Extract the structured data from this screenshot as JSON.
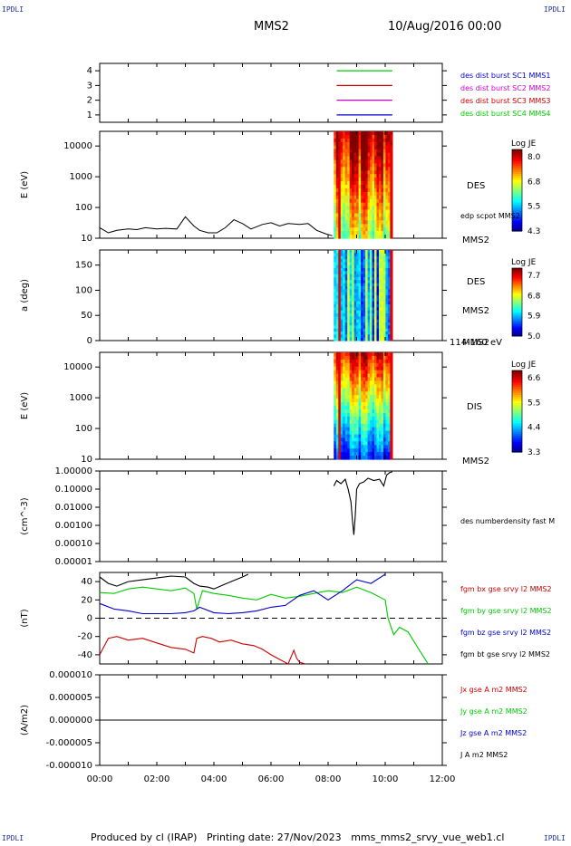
{
  "header": {
    "corner_label": "IPDLI",
    "spacecraft": "MMS2",
    "date": "10/Aug/2016 00:00"
  },
  "footer": {
    "credit": "Produced by cl (IRAP)",
    "printing": "Printing date: 27/Nov/2023",
    "product": "mms_mms2_srvy_vue_web1.cl"
  },
  "chart_data": [
    {
      "id": "coverage",
      "type": "line",
      "ylim": [
        0.5,
        4.5
      ],
      "ticks": [
        "4",
        "3",
        "2",
        "1"
      ],
      "ylabel": "",
      "series": [
        {
          "name": "des dist burst SC1 MMS1",
          "color": "#0000cc",
          "level": 1,
          "x": [
            8.3,
            10.25
          ]
        },
        {
          "name": "des dist burst SC2 MMS2",
          "color": "#cc00cc",
          "level": 2,
          "x": [
            8.3,
            10.25
          ]
        },
        {
          "name": "des dist burst SC3 MMS3",
          "color": "#cc0000",
          "level": 3,
          "x": [
            8.3,
            10.25
          ]
        },
        {
          "name": "des dist burst SC4 MMS4",
          "color": "#00cc00",
          "level": 4,
          "x": [
            8.3,
            10.25
          ]
        }
      ]
    },
    {
      "id": "des-energy",
      "type": "heatmap",
      "ylabel": "E (eV)",
      "yscale": "log",
      "ylim": [
        10,
        30000
      ],
      "ticks": [
        "10000",
        "1000",
        "100",
        "10"
      ],
      "label": "DES",
      "sublabel": "MMS2",
      "overlay_label": "edp scpot MMS2",
      "colorbar": {
        "title": "Log JE",
        "ticks": [
          "8.0",
          "6.8",
          "5.5",
          "4.3"
        ]
      },
      "data_range_hours": [
        8.2,
        10.25
      ],
      "overlay_line": {
        "x": [
          0,
          0.3,
          0.6,
          1.0,
          1.3,
          1.6,
          2.0,
          2.3,
          2.7,
          3.0,
          3.3,
          3.5,
          3.8,
          4.1,
          4.4,
          4.7,
          5.0,
          5.3,
          5.7,
          6.0,
          6.3,
          6.6,
          7.0,
          7.3,
          7.6,
          7.9,
          8.15
        ],
        "y": [
          22,
          15,
          18,
          20,
          19,
          22,
          20,
          21,
          20,
          50,
          25,
          18,
          15,
          15,
          22,
          40,
          30,
          20,
          28,
          32,
          25,
          30,
          28,
          30,
          18,
          14,
          12
        ]
      }
    },
    {
      "id": "des-pitch",
      "type": "heatmap",
      "ylabel": "a (deg)",
      "ylim": [
        0,
        180
      ],
      "ticks": [
        "150",
        "100",
        "50",
        "0"
      ],
      "label": "DES",
      "sublabel": "MMS2",
      "range_label": "114-160 eV",
      "colorbar": {
        "title": "Log JE",
        "ticks": [
          "7.7",
          "6.8",
          "5.9",
          "5.0"
        ]
      },
      "data_range_hours": [
        8.2,
        10.25
      ]
    },
    {
      "id": "dis-energy",
      "type": "heatmap",
      "ylabel": "E (eV)",
      "yscale": "log",
      "ylim": [
        10,
        30000
      ],
      "ticks": [
        "10000",
        "1000",
        "100",
        "10"
      ],
      "label": "DIS",
      "sublabel": "MMS2",
      "colorbar": {
        "title": "Log JE",
        "ticks": [
          "6.6",
          "5.5",
          "4.4",
          "3.3"
        ]
      },
      "data_range_hours": [
        8.2,
        10.25
      ]
    },
    {
      "id": "density",
      "type": "line",
      "ylabel": "(cm^-3)",
      "yscale": "log",
      "ylim": [
        1e-05,
        1.0
      ],
      "ticks": [
        "1.00000",
        "0.10000",
        "0.01000",
        "0.00100",
        "0.00010",
        "0.00001"
      ],
      "series": [
        {
          "name": "des numberdensity fast M",
          "color": "#000000",
          "x": [
            8.2,
            8.3,
            8.45,
            8.6,
            8.7,
            8.8,
            8.85,
            8.9,
            8.95,
            9.0,
            9.1,
            9.25,
            9.4,
            9.6,
            9.8,
            9.95,
            10.05,
            10.15,
            10.25
          ],
          "y": [
            0.15,
            0.3,
            0.2,
            0.35,
            0.1,
            0.02,
            0.002,
            0.0003,
            0.003,
            0.1,
            0.2,
            0.25,
            0.4,
            0.3,
            0.35,
            0.15,
            0.6,
            0.8,
            0.9
          ]
        }
      ]
    },
    {
      "id": "fgm",
      "type": "line",
      "ylabel": "(nT)",
      "ylim": [
        -50,
        50
      ],
      "ticks": [
        "40",
        "20",
        "0",
        "-20",
        "-40"
      ],
      "zero_line": true,
      "series": [
        {
          "name": "fgm bx gse srvy l2 MMS2",
          "color": "#cc0000",
          "x": [
            0.0,
            0.3,
            0.6,
            1.0,
            1.5,
            2.0,
            2.5,
            3.0,
            3.3,
            3.4,
            3.6,
            3.9,
            4.2,
            4.6,
            5.0,
            5.4,
            5.7,
            6.0,
            6.3,
            6.6,
            6.8,
            6.9,
            7.0,
            7.2
          ],
          "y": [
            -40,
            -22,
            -20,
            -24,
            -22,
            -27,
            -32,
            -34,
            -38,
            -22,
            -20,
            -22,
            -26,
            -24,
            -28,
            -30,
            -34,
            -40,
            -45,
            -50,
            -35,
            -44,
            -48,
            -50
          ]
        },
        {
          "name": "fgm by gse srvy l2 MMS2",
          "color": "#00cc00",
          "x": [
            0.0,
            0.5,
            1.0,
            1.5,
            2.0,
            2.5,
            3.0,
            3.3,
            3.4,
            3.6,
            4.0,
            4.5,
            5.0,
            5.5,
            6.0,
            6.5,
            7.0,
            7.5,
            8.0,
            8.5,
            9.0,
            9.5,
            10.0,
            10.1,
            10.3,
            10.5,
            10.8,
            11.0,
            11.2,
            11.5
          ],
          "y": [
            28,
            27,
            32,
            34,
            32,
            30,
            33,
            27,
            10,
            30,
            27,
            25,
            22,
            20,
            26,
            22,
            24,
            27,
            30,
            28,
            34,
            28,
            20,
            0,
            -18,
            -10,
            -15,
            -25,
            -35,
            -50
          ]
        },
        {
          "name": "fgm bz gse srvy l2 MMS2",
          "color": "#0000cc",
          "x": [
            0.0,
            0.5,
            1.0,
            1.5,
            2.0,
            2.5,
            3.0,
            3.3,
            3.5,
            4.0,
            4.5,
            5.0,
            5.5,
            6.0,
            6.5,
            7.0,
            7.5,
            8.0,
            8.5,
            9.0,
            9.5,
            10.0
          ],
          "y": [
            16,
            10,
            8,
            5,
            5,
            5,
            6,
            8,
            12,
            6,
            5,
            6,
            8,
            12,
            14,
            25,
            30,
            20,
            30,
            42,
            38,
            48
          ]
        },
        {
          "name": "fgm bt gse srvy l2 MMS2",
          "color": "#000000",
          "x": [
            0.0,
            0.3,
            0.6,
            1.0,
            1.5,
            2.0,
            2.5,
            3.0,
            3.3,
            3.5,
            3.8,
            4.0,
            4.3,
            4.6,
            5.0,
            5.2
          ],
          "y": [
            45,
            38,
            35,
            40,
            42,
            44,
            46,
            45,
            38,
            35,
            34,
            32,
            36,
            40,
            45,
            48
          ]
        }
      ]
    },
    {
      "id": "current",
      "type": "line",
      "ylabel": "(A/m2)",
      "ylim": [
        -1e-05,
        1e-05
      ],
      "ticks": [
        "0.000010",
        "0.000005",
        "0.000000",
        "-0.000005",
        "-0.000010"
      ],
      "xticks": [
        "00:00",
        "02:00",
        "04:00",
        "06:00",
        "08:00",
        "10:00",
        "12:00"
      ],
      "series": [
        {
          "name": "Jx gse A m2 MMS2",
          "color": "#cc0000",
          "x": [
            0,
            12
          ],
          "y": [
            0,
            0
          ]
        },
        {
          "name": "Jy gse A m2 MMS2",
          "color": "#00cc00",
          "x": [
            0,
            12
          ],
          "y": [
            0,
            0
          ]
        },
        {
          "name": "Jz gse A m2 MMS2",
          "color": "#0000cc",
          "x": [
            0,
            12
          ],
          "y": [
            0,
            0
          ]
        },
        {
          "name": "J A m2 MMS2",
          "color": "#000000",
          "x": [
            0,
            12
          ],
          "y": [
            0,
            0
          ]
        }
      ]
    }
  ]
}
